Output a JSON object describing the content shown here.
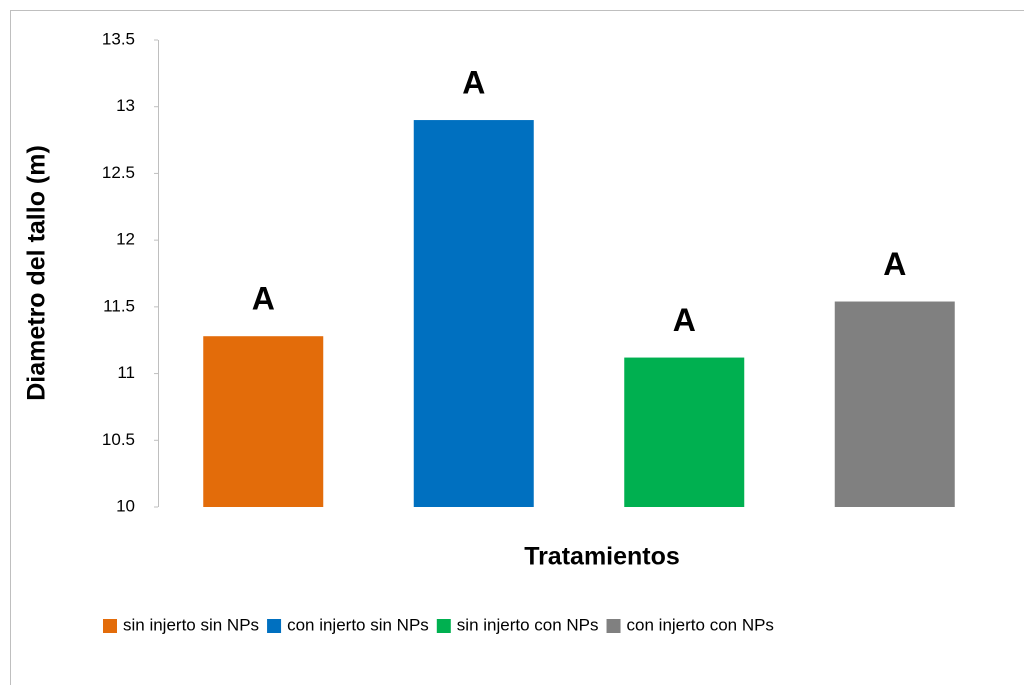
{
  "chart_data": {
    "type": "bar",
    "ylabel": "Diametro del tallo (m)",
    "xlabel": "Tratamientos",
    "categories": [
      "sin injerto sin NPs",
      "con injerto sin NPs",
      "sin injerto con NPs",
      "con injerto con NPs"
    ],
    "values": [
      11.28,
      12.9,
      11.12,
      11.54
    ],
    "colors": [
      "#e36c0a",
      "#0070c0",
      "#00b050",
      "#808080"
    ],
    "annotations": [
      "A",
      "A",
      "A",
      "A"
    ],
    "ylim": [
      10,
      13.5
    ],
    "yticks": [
      10,
      10.5,
      11,
      11.5,
      12,
      12.5,
      13,
      13.5
    ],
    "legend": "bottom"
  }
}
